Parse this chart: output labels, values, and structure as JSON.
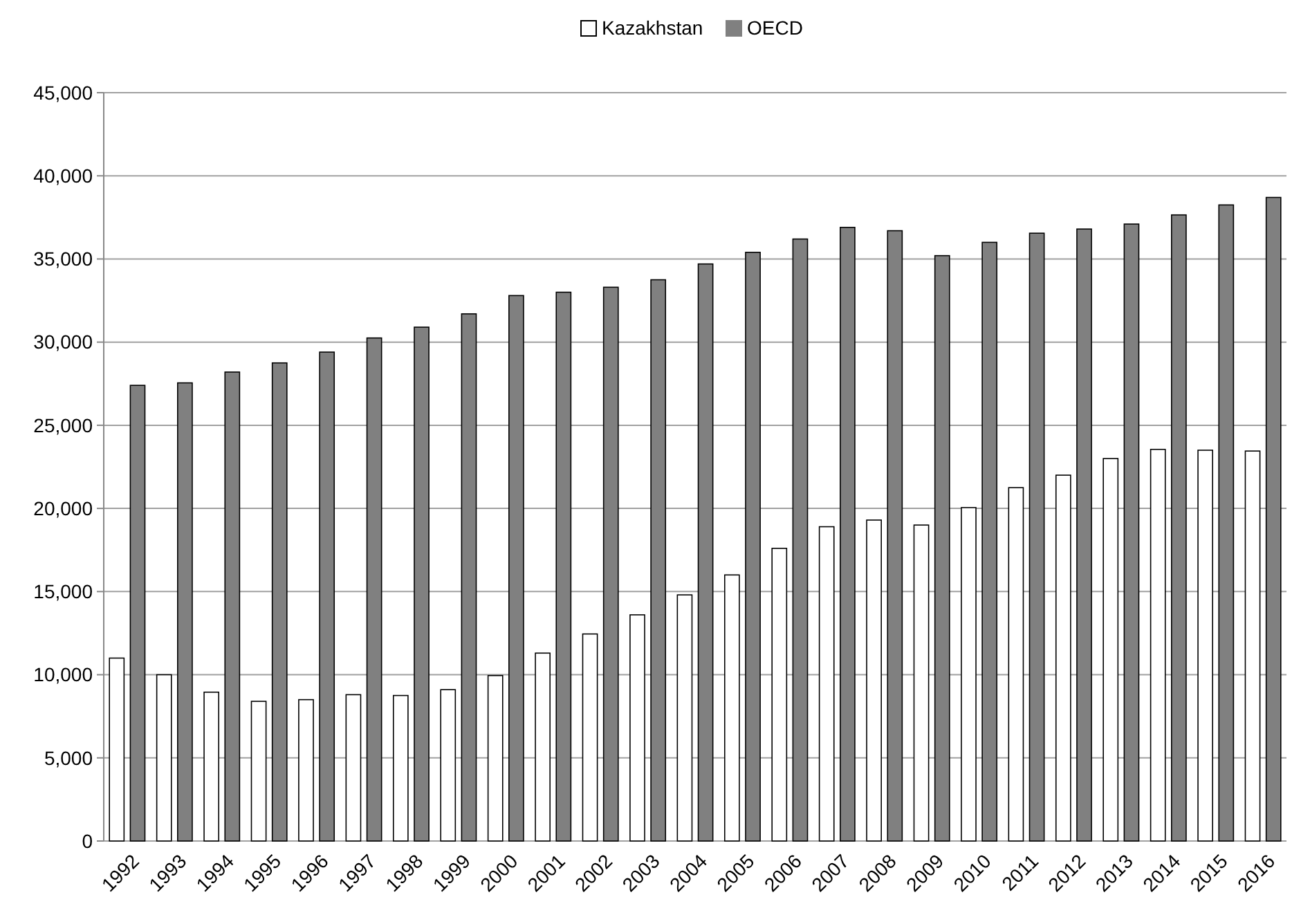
{
  "chart_data": {
    "type": "bar",
    "categories": [
      "1992",
      "1993",
      "1994",
      "1995",
      "1996",
      "1997",
      "1998",
      "1999",
      "2000",
      "2001",
      "2002",
      "2003",
      "2004",
      "2005",
      "2006",
      "2007",
      "2008",
      "2009",
      "2010",
      "2011",
      "2012",
      "2013",
      "2014",
      "2015",
      "2016"
    ],
    "series": [
      {
        "name": "Kazakhstan",
        "color": "#ffffff",
        "values": [
          11000,
          10000,
          8950,
          8400,
          8500,
          8800,
          8750,
          9100,
          9950,
          11300,
          12450,
          13600,
          14800,
          16000,
          17600,
          18900,
          19300,
          19000,
          20050,
          21250,
          22000,
          23000,
          23550,
          23500,
          23450
        ]
      },
      {
        "name": "OECD",
        "color": "#808080",
        "values": [
          27400,
          27550,
          28200,
          28750,
          29400,
          30250,
          30900,
          31700,
          32800,
          33000,
          33300,
          33750,
          34700,
          35400,
          36200,
          36900,
          36700,
          35200,
          36000,
          36550,
          36800,
          37100,
          37650,
          38250,
          38700
        ]
      }
    ],
    "ylim": [
      0,
      45000
    ],
    "yticks": [
      {
        "value": 0,
        "label": "0"
      },
      {
        "value": 5000,
        "label": "5,000"
      },
      {
        "value": 10000,
        "label": "10,000"
      },
      {
        "value": 15000,
        "label": "15,000"
      },
      {
        "value": 20000,
        "label": "20,000"
      },
      {
        "value": 25000,
        "label": "25,000"
      },
      {
        "value": 30000,
        "label": "30,000"
      },
      {
        "value": 35000,
        "label": "35,000"
      },
      {
        "value": 40000,
        "label": "40,000"
      },
      {
        "value": 45000,
        "label": "45,000"
      }
    ],
    "grid": "y",
    "legend": "top"
  }
}
